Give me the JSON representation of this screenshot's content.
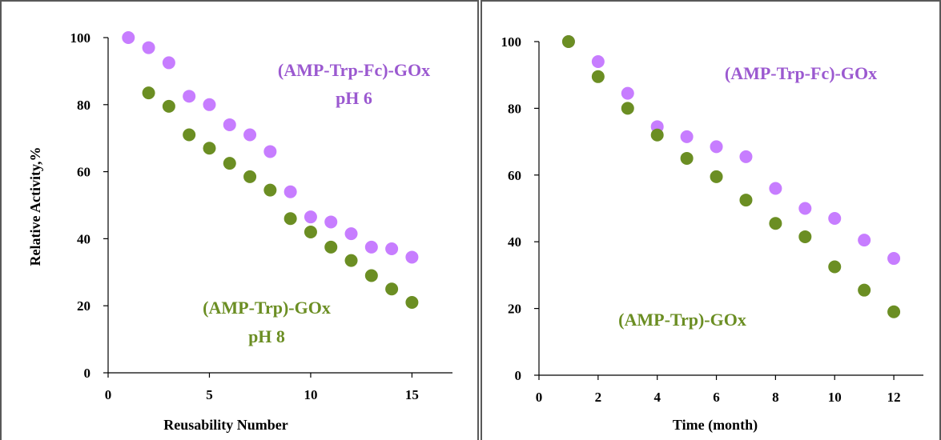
{
  "colors": {
    "purple": "#c77dff",
    "green": "#6b8e23",
    "frame": "#595959"
  },
  "chart_data": [
    {
      "type": "scatter",
      "xlabel": "Reusability Number",
      "ylabel": "Relative Activity,%",
      "xlim": [
        0,
        17
      ],
      "ylim": [
        0,
        100
      ],
      "xticks": [
        0,
        5,
        10,
        15
      ],
      "yticks": [
        0,
        20,
        40,
        60,
        80,
        100
      ],
      "series": [
        {
          "name": "(AMP-Trp-Fc)-GOx",
          "color": "#c77dff",
          "x": [
            1,
            2,
            3,
            4,
            5,
            6,
            7,
            8,
            9,
            10,
            11,
            12,
            13,
            14,
            15
          ],
          "y": [
            100,
            97,
            92.5,
            82.5,
            80,
            74,
            71,
            66,
            54,
            46.5,
            45,
            41.5,
            37.5,
            37,
            34.5
          ]
        },
        {
          "name": "(AMP-Trp)-GOx",
          "color": "#6b8e23",
          "x": [
            2,
            3,
            4,
            5,
            6,
            7,
            8,
            9,
            10,
            11,
            12,
            13,
            14,
            15
          ],
          "y": [
            83.5,
            79.5,
            71,
            67,
            62.5,
            58.5,
            54.5,
            46,
            42,
            37.5,
            33.5,
            29,
            25,
            21
          ]
        }
      ],
      "annotations": [
        {
          "text": "(AMP-Trp-Fc)-GOx",
          "color": "#9b59d0"
        },
        {
          "text": "pH 6",
          "color": "#9b59d0"
        },
        {
          "text": "(AMP-Trp)-GOx",
          "color": "#6b8e23"
        },
        {
          "text": "pH 8",
          "color": "#6b8e23"
        }
      ]
    },
    {
      "type": "scatter",
      "xlabel": "Time (month)",
      "ylabel": "",
      "xlim": [
        0,
        13
      ],
      "ylim": [
        0,
        100
      ],
      "xticks": [
        0,
        2,
        4,
        6,
        8,
        10,
        12
      ],
      "yticks": [
        0,
        20,
        40,
        60,
        80,
        100
      ],
      "series": [
        {
          "name": "(AMP-Trp-Fc)-GOx",
          "color": "#c77dff",
          "x": [
            1,
            2,
            3,
            4,
            5,
            6,
            7,
            8,
            9,
            10,
            11,
            12
          ],
          "y": [
            100,
            94,
            84.5,
            74.5,
            71.5,
            68.5,
            65.5,
            56,
            50,
            47,
            40.5,
            35
          ]
        },
        {
          "name": "(AMP-Trp)-GOx",
          "color": "#6b8e23",
          "x": [
            1,
            2,
            3,
            4,
            5,
            6,
            7,
            8,
            9,
            10,
            11,
            12
          ],
          "y": [
            100,
            89.5,
            80,
            72,
            65,
            59.5,
            52.5,
            45.5,
            41.5,
            32.5,
            25.5,
            19
          ]
        }
      ],
      "annotations": [
        {
          "text": "(AMP-Trp-Fc)-GOx",
          "color": "#9b59d0"
        },
        {
          "text": "(AMP-Trp)-GOx",
          "color": "#6b8e23"
        }
      ]
    }
  ]
}
